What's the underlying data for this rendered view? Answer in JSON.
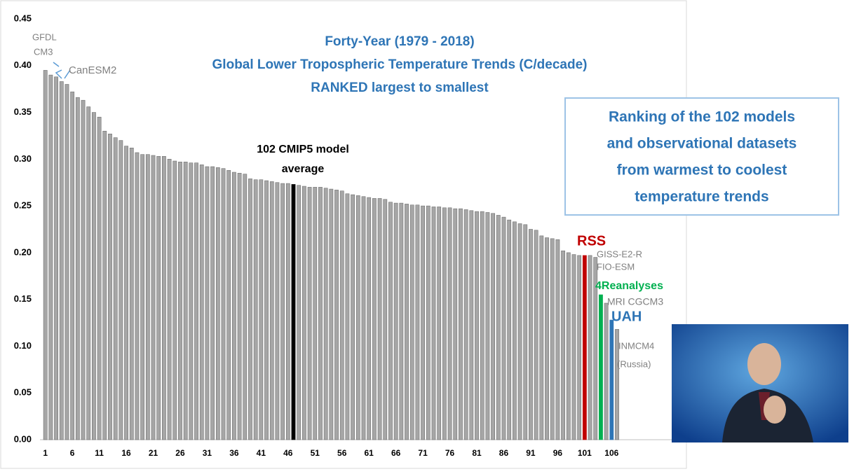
{
  "chart_data": {
    "type": "bar",
    "title": [
      "Forty-Year (1979 - 2018)",
      "Global Lower Tropospheric Temperature Trends (C/decade)",
      "RANKED largest to smallest"
    ],
    "callout": [
      "Ranking of the 102 models",
      "and observational datasets",
      "from warmest to coolest",
      "temperature trends"
    ],
    "annotations": [
      {
        "text": "GFDL",
        "color": "#808080"
      },
      {
        "text": "CM3",
        "color": "#808080"
      },
      {
        "text": "CanESM2",
        "color": "#808080"
      },
      {
        "text": "102 CMIP5 model",
        "color": "#000000"
      },
      {
        "text": "average",
        "color": "#000000"
      },
      {
        "text": "RSS",
        "color": "#c00000"
      },
      {
        "text": "GISS-E2-R",
        "color": "#808080"
      },
      {
        "text": "FIO-ESM",
        "color": "#808080"
      },
      {
        "text": "4Reanalyses",
        "color": "#00b050"
      },
      {
        "text": "MRI CGCM3",
        "color": "#808080"
      },
      {
        "text": "UAH",
        "color": "#2e75b6"
      },
      {
        "text": "INMCM4",
        "color": "#808080"
      },
      {
        "text": "(Russia)",
        "color": "#808080"
      }
    ],
    "title_color": "#2e75b6",
    "x": [
      1,
      2,
      3,
      4,
      5,
      6,
      7,
      8,
      9,
      10,
      11,
      12,
      13,
      14,
      15,
      16,
      17,
      18,
      19,
      20,
      21,
      22,
      23,
      24,
      25,
      26,
      27,
      28,
      29,
      30,
      31,
      32,
      33,
      34,
      35,
      36,
      37,
      38,
      39,
      40,
      41,
      42,
      43,
      44,
      45,
      46,
      47,
      48,
      49,
      50,
      51,
      52,
      53,
      54,
      55,
      56,
      57,
      58,
      59,
      60,
      61,
      62,
      63,
      64,
      65,
      66,
      67,
      68,
      69,
      70,
      71,
      72,
      73,
      74,
      75,
      76,
      77,
      78,
      79,
      80,
      81,
      82,
      83,
      84,
      85,
      86,
      87,
      88,
      89,
      90,
      91,
      92,
      93,
      94,
      95,
      96,
      97,
      98,
      99,
      100,
      101,
      102,
      103,
      104,
      105,
      106,
      107
    ],
    "xlim": [
      0,
      120
    ],
    "xticks": [
      1,
      6,
      11,
      16,
      21,
      26,
      31,
      36,
      41,
      46,
      51,
      56,
      61,
      66,
      71,
      76,
      81,
      86,
      91,
      96,
      101,
      106
    ],
    "ylim": [
      0,
      0.45
    ],
    "yticks": [
      {
        "value": 0,
        "label": "0.00"
      },
      {
        "value": 0.05,
        "label": "0.05"
      },
      {
        "value": 0.1,
        "label": "0.10"
      },
      {
        "value": 0.15,
        "label": "0.15"
      },
      {
        "value": 0.2,
        "label": "0.20"
      },
      {
        "value": 0.25,
        "label": "0.25"
      },
      {
        "value": 0.3,
        "label": "0.30"
      },
      {
        "value": 0.35,
        "label": "0.35"
      },
      {
        "value": 0.4,
        "label": "0.40"
      },
      {
        "value": 0.45,
        "label": "0.45"
      }
    ],
    "grid": false,
    "series": [
      {
        "values": [
          0.395,
          0.39,
          0.388,
          0.383,
          0.38,
          0.372,
          0.366,
          0.363,
          0.356,
          0.35,
          0.345,
          0.33,
          0.327,
          0.323,
          0.32,
          0.314,
          0.312,
          0.307,
          0.305,
          0.305,
          0.304,
          0.303,
          0.303,
          0.3,
          0.298,
          0.297,
          0.297,
          0.296,
          0.296,
          0.294,
          0.292,
          0.292,
          0.291,
          0.29,
          0.288,
          0.286,
          0.285,
          0.284,
          0.279,
          0.278,
          0.278,
          0.277,
          0.276,
          0.275,
          0.274,
          0.274,
          0.273,
          0.272,
          0.271,
          0.27,
          0.27,
          0.27,
          0.269,
          0.268,
          0.267,
          0.266,
          0.263,
          0.262,
          0.261,
          0.26,
          0.259,
          0.258,
          0.258,
          0.257,
          0.254,
          0.253,
          0.253,
          0.252,
          0.251,
          0.251,
          0.25,
          0.25,
          0.249,
          0.249,
          0.248,
          0.248,
          0.247,
          0.247,
          0.246,
          0.245,
          0.244,
          0.244,
          0.243,
          0.242,
          0.24,
          0.238,
          0.235,
          0.233,
          0.231,
          0.23,
          0.225,
          0.224,
          0.218,
          0.216,
          0.215,
          0.214,
          0.202,
          0.2,
          0.198,
          0.197,
          0.197,
          0.197,
          0.195,
          0.155,
          0.146,
          0.128,
          0.118
        ],
        "colors": [
          "#a6a6a6",
          "#a6a6a6",
          "#a6a6a6",
          "#a6a6a6",
          "#a6a6a6",
          "#a6a6a6",
          "#a6a6a6",
          "#a6a6a6",
          "#a6a6a6",
          "#a6a6a6",
          "#a6a6a6",
          "#a6a6a6",
          "#a6a6a6",
          "#a6a6a6",
          "#a6a6a6",
          "#a6a6a6",
          "#a6a6a6",
          "#a6a6a6",
          "#a6a6a6",
          "#a6a6a6",
          "#a6a6a6",
          "#a6a6a6",
          "#a6a6a6",
          "#a6a6a6",
          "#a6a6a6",
          "#a6a6a6",
          "#a6a6a6",
          "#a6a6a6",
          "#a6a6a6",
          "#a6a6a6",
          "#a6a6a6",
          "#a6a6a6",
          "#a6a6a6",
          "#a6a6a6",
          "#a6a6a6",
          "#a6a6a6",
          "#a6a6a6",
          "#a6a6a6",
          "#a6a6a6",
          "#a6a6a6",
          "#a6a6a6",
          "#a6a6a6",
          "#a6a6a6",
          "#a6a6a6",
          "#a6a6a6",
          "#a6a6a6",
          "#000000",
          "#a6a6a6",
          "#a6a6a6",
          "#a6a6a6",
          "#a6a6a6",
          "#a6a6a6",
          "#a6a6a6",
          "#a6a6a6",
          "#a6a6a6",
          "#a6a6a6",
          "#a6a6a6",
          "#a6a6a6",
          "#a6a6a6",
          "#a6a6a6",
          "#a6a6a6",
          "#a6a6a6",
          "#a6a6a6",
          "#a6a6a6",
          "#a6a6a6",
          "#a6a6a6",
          "#a6a6a6",
          "#a6a6a6",
          "#a6a6a6",
          "#a6a6a6",
          "#a6a6a6",
          "#a6a6a6",
          "#a6a6a6",
          "#a6a6a6",
          "#a6a6a6",
          "#a6a6a6",
          "#a6a6a6",
          "#a6a6a6",
          "#a6a6a6",
          "#a6a6a6",
          "#a6a6a6",
          "#a6a6a6",
          "#a6a6a6",
          "#a6a6a6",
          "#a6a6a6",
          "#a6a6a6",
          "#a6a6a6",
          "#a6a6a6",
          "#a6a6a6",
          "#a6a6a6",
          "#a6a6a6",
          "#a6a6a6",
          "#a6a6a6",
          "#a6a6a6",
          "#a6a6a6",
          "#a6a6a6",
          "#a6a6a6",
          "#a6a6a6",
          "#a6a6a6",
          "#a6a6a6",
          "#c00000",
          "#a6a6a6",
          "#a6a6a6",
          "#00b050",
          "#a6a6a6",
          "#2e75b6",
          "#a6a6a6"
        ]
      }
    ]
  }
}
